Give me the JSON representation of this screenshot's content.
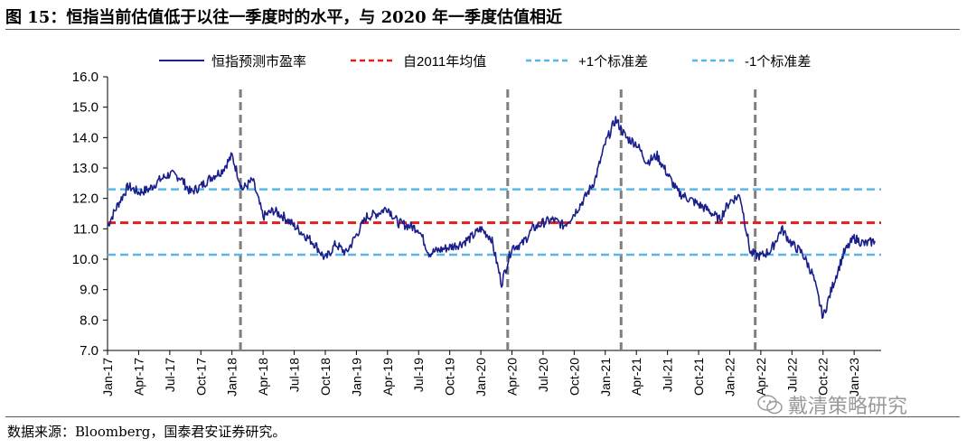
{
  "figure": {
    "title": "图 15：恒指当前估值低于以往一季度时的水平，与 2020 年一季度估值相近",
    "source": "数据来源：Bloomberg，国泰君安证券研究。",
    "watermark": "戴清策略研究"
  },
  "colors": {
    "pe_line": "#1a1f8c",
    "mean_line": "#e0201f",
    "std_lines": "#5ab6e8",
    "markers": "#7f7f7f",
    "axis": "#000000"
  },
  "chart_data": {
    "type": "line",
    "legend": [
      "恒指预测市盈率",
      "自2011年均值",
      "+1个标准差",
      "-1个标准差"
    ],
    "legend_placement": "top",
    "ylim": [
      7.0,
      16.0
    ],
    "y_ticks": [
      "16.0",
      "15.0",
      "14.0",
      "13.0",
      "12.0",
      "11.0",
      "10.0",
      "9.0",
      "8.0",
      "7.0"
    ],
    "x_ticks": [
      "Jan-17",
      "Apr-17",
      "Jul-17",
      "Oct-17",
      "Jan-18",
      "Apr-18",
      "Jul-18",
      "Oct-18",
      "Jan-19",
      "Apr-19",
      "Jul-19",
      "Oct-19",
      "Jan-20",
      "Apr-20",
      "Jul-20",
      "Oct-20",
      "Jan-21",
      "Apr-21",
      "Jul-21",
      "Oct-21",
      "Jan-22",
      "Apr-22",
      "Jul-22",
      "Oct-22",
      "Jan-23"
    ],
    "x_range": [
      "2017-01",
      "2023-03"
    ],
    "hlines": {
      "mean": 11.2,
      "plus_1_std": 12.3,
      "minus_1_std": 10.15
    },
    "vlines": [
      "2018-01-26",
      "2020-03-19",
      "2021-02-17",
      "2022-03-15"
    ],
    "series": [
      {
        "name": "恒指预测市盈率",
        "points": [
          [
            "2017-01",
            11.1
          ],
          [
            "2017-02",
            11.8
          ],
          [
            "2017-03",
            12.4
          ],
          [
            "2017-04",
            12.2
          ],
          [
            "2017-05",
            12.3
          ],
          [
            "2017-06",
            12.6
          ],
          [
            "2017-07",
            12.8
          ],
          [
            "2017-08",
            12.7
          ],
          [
            "2017-09",
            12.2
          ],
          [
            "2017-10",
            12.4
          ],
          [
            "2017-11",
            12.7
          ],
          [
            "2017-12",
            12.9
          ],
          [
            "2018-01",
            13.4
          ],
          [
            "2018-02",
            12.3
          ],
          [
            "2018-03",
            12.6
          ],
          [
            "2018-04",
            11.4
          ],
          [
            "2018-05",
            11.6
          ],
          [
            "2018-06",
            11.4
          ],
          [
            "2018-07",
            11.1
          ],
          [
            "2018-08",
            10.8
          ],
          [
            "2018-09",
            10.5
          ],
          [
            "2018-10",
            10.0
          ],
          [
            "2018-11",
            10.5
          ],
          [
            "2018-12",
            10.2
          ],
          [
            "2019-01",
            10.8
          ],
          [
            "2019-02",
            11.4
          ],
          [
            "2019-03",
            11.5
          ],
          [
            "2019-04",
            11.7
          ],
          [
            "2019-05",
            11.2
          ],
          [
            "2019-06",
            11.1
          ],
          [
            "2019-07",
            11.0
          ],
          [
            "2019-08",
            10.2
          ],
          [
            "2019-09",
            10.3
          ],
          [
            "2019-10",
            10.4
          ],
          [
            "2019-11",
            10.5
          ],
          [
            "2019-12",
            10.7
          ],
          [
            "2020-01",
            11.0
          ],
          [
            "2020-02",
            10.7
          ],
          [
            "2020-03",
            9.2
          ],
          [
            "2020-04",
            10.4
          ],
          [
            "2020-05",
            10.5
          ],
          [
            "2020-06",
            11.0
          ],
          [
            "2020-07",
            11.2
          ],
          [
            "2020-08",
            11.3
          ],
          [
            "2020-09",
            11.1
          ],
          [
            "2020-10",
            11.5
          ],
          [
            "2020-11",
            12.0
          ],
          [
            "2020-12",
            12.6
          ],
          [
            "2021-01",
            13.8
          ],
          [
            "2021-02",
            14.6
          ],
          [
            "2021-03",
            14.0
          ],
          [
            "2021-04",
            13.8
          ],
          [
            "2021-05",
            13.2
          ],
          [
            "2021-06",
            13.4
          ],
          [
            "2021-07",
            12.8
          ],
          [
            "2021-08",
            12.2
          ],
          [
            "2021-09",
            12.0
          ],
          [
            "2021-10",
            11.8
          ],
          [
            "2021-11",
            11.6
          ],
          [
            "2021-12",
            11.3
          ],
          [
            "2022-01",
            11.9
          ],
          [
            "2022-02",
            12.1
          ],
          [
            "2022-03",
            10.2
          ],
          [
            "2022-04",
            10.1
          ],
          [
            "2022-05",
            10.3
          ],
          [
            "2022-06",
            11.0
          ],
          [
            "2022-07",
            10.5
          ],
          [
            "2022-08",
            10.2
          ],
          [
            "2022-09",
            9.5
          ],
          [
            "2022-10",
            8.1
          ],
          [
            "2022-11",
            9.2
          ],
          [
            "2022-12",
            10.2
          ],
          [
            "2023-01",
            10.7
          ],
          [
            "2023-02",
            10.5
          ],
          [
            "2023-03",
            10.6
          ]
        ]
      }
    ]
  }
}
